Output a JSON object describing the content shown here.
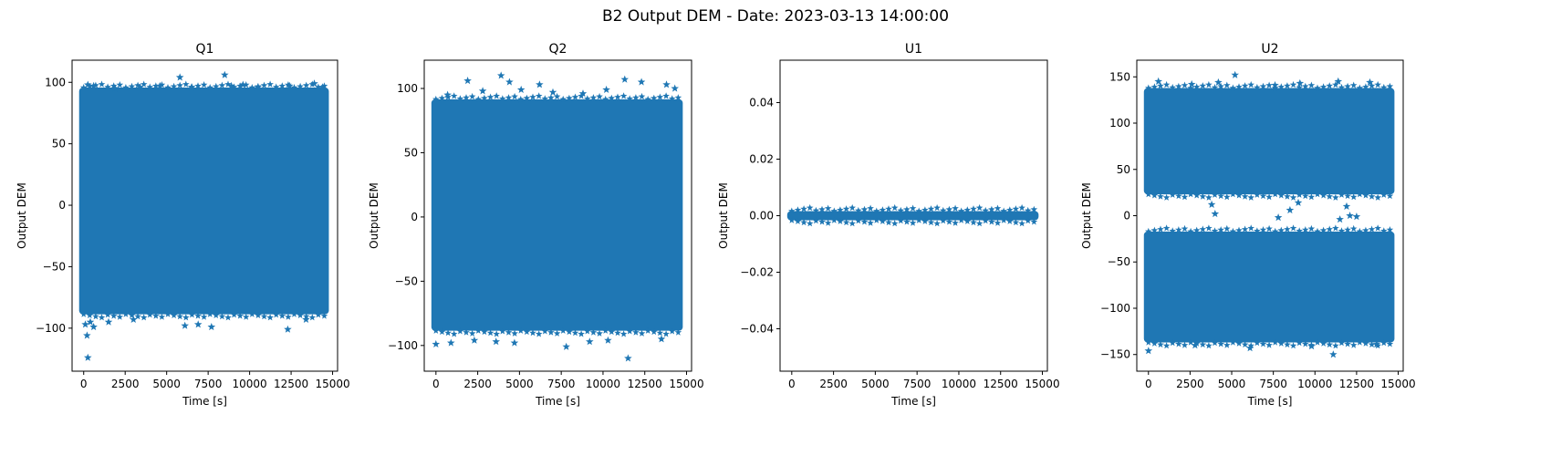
{
  "figure": {
    "suptitle": "B2 Output DEM - Date: 2023-03-13 14:00:00"
  },
  "colors": {
    "series": "#1f77b4",
    "axis": "#000000",
    "background": "#ffffff"
  },
  "chart_data": [
    {
      "type": "scatter",
      "marker": "star",
      "title": "Q1",
      "xlabel": "Time [s]",
      "ylabel": "Output DEM",
      "xlim": [
        -700,
        15300
      ],
      "ylim": [
        -135,
        118
      ],
      "xticks": [
        0,
        2500,
        5000,
        7500,
        10000,
        12500,
        15000
      ],
      "yticks": [
        -100,
        -50,
        0,
        50,
        100
      ],
      "yticklabels": [
        "−100",
        "−50",
        "0",
        "50",
        "100"
      ],
      "x_range": [
        0,
        14500
      ],
      "bands": [
        {
          "x": [
            0,
            14500
          ],
          "y": [
            -85,
            92
          ]
        }
      ],
      "outliers": [
        [
          250,
          -124
        ],
        [
          200,
          -106
        ],
        [
          100,
          -97
        ],
        [
          400,
          -95
        ],
        [
          600,
          -99
        ],
        [
          1500,
          -95
        ],
        [
          3000,
          -93
        ],
        [
          6100,
          -98
        ],
        [
          6900,
          -97
        ],
        [
          7700,
          -99
        ],
        [
          12300,
          -101
        ],
        [
          13400,
          -93
        ],
        [
          5800,
          104
        ],
        [
          8500,
          106
        ],
        [
          250,
          98
        ],
        [
          600,
          97
        ],
        [
          1900,
          95
        ],
        [
          3400,
          96
        ],
        [
          4600,
          97
        ],
        [
          6500,
          96
        ],
        [
          8900,
          97
        ],
        [
          9600,
          98
        ],
        [
          10500,
          96
        ],
        [
          12400,
          97
        ],
        [
          13900,
          99
        ],
        [
          14400,
          96
        ]
      ]
    },
    {
      "type": "scatter",
      "marker": "star",
      "title": "Q2",
      "xlabel": "Time [s]",
      "ylabel": "Output DEM",
      "xlim": [
        -700,
        15300
      ],
      "ylim": [
        -120,
        122
      ],
      "xticks": [
        0,
        2500,
        5000,
        7500,
        10000,
        12500,
        15000
      ],
      "yticks": [
        -100,
        -50,
        0,
        50,
        100
      ],
      "yticklabels": [
        "−100",
        "−50",
        "0",
        "50",
        "100"
      ],
      "x_range": [
        0,
        14500
      ],
      "bands": [
        {
          "x": [
            0,
            14500
          ],
          "y": [
            -85,
            88
          ]
        }
      ],
      "outliers": [
        [
          11500,
          -110
        ],
        [
          0,
          -99
        ],
        [
          900,
          -98
        ],
        [
          2300,
          -96
        ],
        [
          3600,
          -97
        ],
        [
          4700,
          -98
        ],
        [
          7800,
          -101
        ],
        [
          9200,
          -97
        ],
        [
          10300,
          -96
        ],
        [
          13500,
          -95
        ],
        [
          1900,
          106
        ],
        [
          3900,
          110
        ],
        [
          4400,
          105
        ],
        [
          6200,
          103
        ],
        [
          11300,
          107
        ],
        [
          12300,
          105
        ],
        [
          13800,
          103
        ],
        [
          5100,
          99
        ],
        [
          7000,
          97
        ],
        [
          8800,
          96
        ],
        [
          10200,
          99
        ],
        [
          700,
          95
        ],
        [
          14300,
          100
        ],
        [
          2800,
          98
        ]
      ]
    },
    {
      "type": "scatter",
      "marker": "star",
      "title": "U1",
      "xlabel": "Time [s]",
      "ylabel": "Output DEM",
      "xlim": [
        -700,
        15300
      ],
      "ylim": [
        -0.055,
        0.055
      ],
      "xticks": [
        0,
        2500,
        5000,
        7500,
        10000,
        12500,
        15000
      ],
      "yticks": [
        -0.04,
        -0.02,
        0.0,
        0.02,
        0.04
      ],
      "yticklabels": [
        "−0.04",
        "−0.02",
        "0.00",
        "0.02",
        "0.04"
      ],
      "x_range": [
        0,
        14500
      ],
      "bands": [
        {
          "x": [
            0,
            14500
          ],
          "y": [
            0,
            0
          ]
        }
      ],
      "outliers": []
    },
    {
      "type": "scatter",
      "marker": "star",
      "title": "U2",
      "xlabel": "Time [s]",
      "ylabel": "Output DEM",
      "xlim": [
        -700,
        15300
      ],
      "ylim": [
        -168,
        168
      ],
      "xticks": [
        0,
        2500,
        5000,
        7500,
        10000,
        12500,
        15000
      ],
      "yticks": [
        -150,
        -100,
        -50,
        0,
        50,
        100,
        150
      ],
      "yticklabels": [
        "−150",
        "−100",
        "−50",
        "0",
        "50",
        "100",
        "150"
      ],
      "x_range": [
        0,
        14500
      ],
      "bands": [
        {
          "x": [
            0,
            14500
          ],
          "y": [
            28,
            133
          ]
        },
        {
          "x": [
            0,
            14500
          ],
          "y": [
            -132,
            -22
          ]
        }
      ],
      "outliers": [
        [
          5200,
          152
        ],
        [
          600,
          145
        ],
        [
          2600,
          142
        ],
        [
          4200,
          144
        ],
        [
          9100,
          143
        ],
        [
          11400,
          145
        ],
        [
          13300,
          144
        ],
        [
          7600,
          141
        ],
        [
          4000,
          2
        ],
        [
          7800,
          -2
        ],
        [
          8500,
          6
        ],
        [
          11500,
          -4
        ],
        [
          11900,
          10
        ],
        [
          12100,
          0
        ],
        [
          12500,
          -1
        ],
        [
          9000,
          14
        ],
        [
          3800,
          12
        ],
        [
          0,
          -146
        ],
        [
          11100,
          -150
        ],
        [
          6100,
          -143
        ],
        [
          2800,
          -140
        ],
        [
          9800,
          -141
        ],
        [
          13700,
          -139
        ]
      ]
    }
  ]
}
